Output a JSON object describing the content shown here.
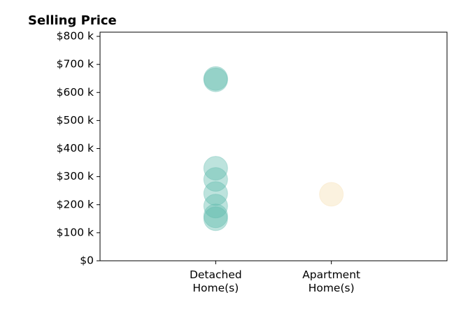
{
  "chart_data": {
    "type": "scatter",
    "title": "Selling Price",
    "xlabel": "",
    "ylabel": "",
    "categories": [
      "Detached|Home(s)",
      "Apartment|Home(s)"
    ],
    "xlim": [
      0,
      3
    ],
    "ylim": [
      0,
      815000
    ],
    "yticks": [
      0,
      100000,
      200000,
      300000,
      400000,
      500000,
      600000,
      700000,
      800000
    ],
    "ytick_labels": [
      "$0",
      "$100 k",
      "$200 k",
      "$300 k",
      "$400 k",
      "$500 k",
      "$600 k",
      "$700 k",
      "$800 k"
    ],
    "grid": false,
    "legend": "none",
    "series": [
      {
        "category": "Detached|Home(s)",
        "color": "#5bb8ab",
        "values": [
          650000,
          645000,
          330000,
          290000,
          240000,
          195000,
          160000,
          150000
        ]
      },
      {
        "category": "Apartment|Home(s)",
        "color": "#f5deb0",
        "values": [
          237000
        ]
      }
    ]
  }
}
